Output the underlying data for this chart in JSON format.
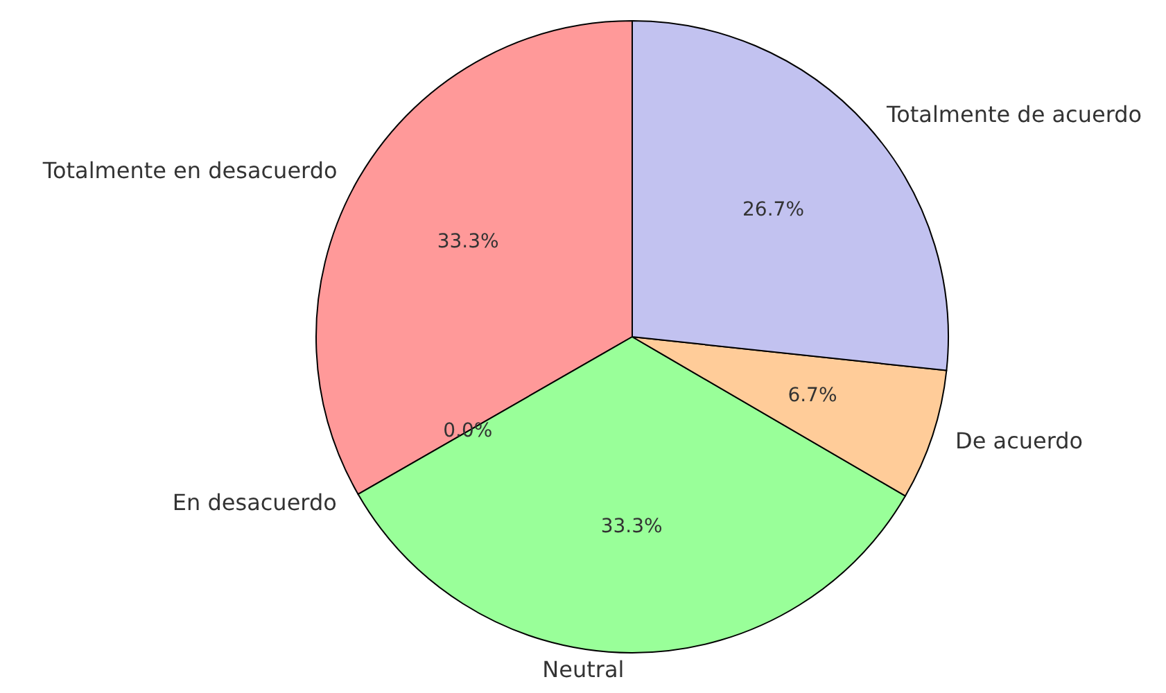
{
  "chart_data": {
    "type": "pie",
    "categories": [
      "Totalmente en desacuerdo",
      "En desacuerdo",
      "Neutral",
      "De acuerdo",
      "Totalmente de acuerdo"
    ],
    "values": [
      33.3,
      0.0,
      33.3,
      6.7,
      26.7
    ],
    "value_labels": [
      "33.3%",
      "0.0%",
      "33.3%",
      "6.7%",
      "26.7%"
    ],
    "colors": [
      "#ff9999",
      "#66b3ff",
      "#99ff99",
      "#ffcc99",
      "#c2c2f0"
    ],
    "legend": false
  }
}
